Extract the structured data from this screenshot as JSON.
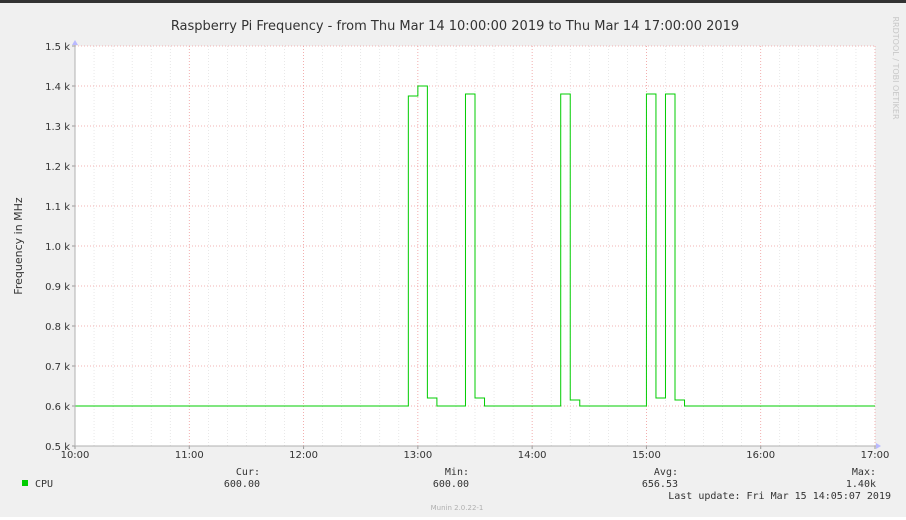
{
  "chart_data": {
    "type": "line",
    "title": "Raspberry Pi Frequency - from Thu Mar 14 10:00:00 2019 to Thu Mar 14 17:00:00 2019",
    "ylabel": "Frequency in MHz",
    "xlabel": "",
    "side_label": "RRDTOOL / TOBI OETIKER",
    "xlim": [
      "10:00",
      "17:00"
    ],
    "ylim": [
      500,
      1500
    ],
    "grid": true,
    "x_ticks": [
      "10:00",
      "11:00",
      "12:00",
      "13:00",
      "14:00",
      "15:00",
      "16:00",
      "17:00"
    ],
    "y_ticks": [
      {
        "value": 500,
        "label": "0.5 k"
      },
      {
        "value": 600,
        "label": "0.6 k"
      },
      {
        "value": 700,
        "label": "0.7 k"
      },
      {
        "value": 800,
        "label": "0.8 k"
      },
      {
        "value": 900,
        "label": "0.9 k"
      },
      {
        "value": 1000,
        "label": "1.0 k"
      },
      {
        "value": 1100,
        "label": "1.1 k"
      },
      {
        "value": 1200,
        "label": "1.2 k"
      },
      {
        "value": 1300,
        "label": "1.3 k"
      },
      {
        "value": 1400,
        "label": "1.4 k"
      },
      {
        "value": 1500,
        "label": "1.5 k"
      }
    ],
    "series": [
      {
        "name": "CPU",
        "color": "#00cc00",
        "step": true,
        "points": [
          {
            "x": "10:00",
            "y": 600
          },
          {
            "x": "12:55",
            "y": 1375
          },
          {
            "x": "13:00",
            "y": 1400
          },
          {
            "x": "13:05",
            "y": 620
          },
          {
            "x": "13:10",
            "y": 600
          },
          {
            "x": "13:25",
            "y": 1380
          },
          {
            "x": "13:30",
            "y": 620
          },
          {
            "x": "13:35",
            "y": 600
          },
          {
            "x": "14:15",
            "y": 1380
          },
          {
            "x": "14:20",
            "y": 615
          },
          {
            "x": "14:25",
            "y": 600
          },
          {
            "x": "15:00",
            "y": 1380
          },
          {
            "x": "15:05",
            "y": 620
          },
          {
            "x": "15:10",
            "y": 1380
          },
          {
            "x": "15:15",
            "y": 615
          },
          {
            "x": "15:20",
            "y": 600
          },
          {
            "x": "17:00",
            "y": 600
          }
        ]
      }
    ]
  },
  "legend": {
    "series_name": "CPU",
    "series_color": "#00cc00",
    "cur_label": "Cur:",
    "cur_value": "600.00",
    "min_label": "Min:",
    "min_value": "600.00",
    "avg_label": "Avg:",
    "avg_value": "656.53",
    "max_label": "Max:",
    "max_value": "1.40k",
    "last_update": "Last update: Fri Mar 15 14:05:07 2019"
  },
  "footer": {
    "version": "Munin 2.0.22-1"
  }
}
